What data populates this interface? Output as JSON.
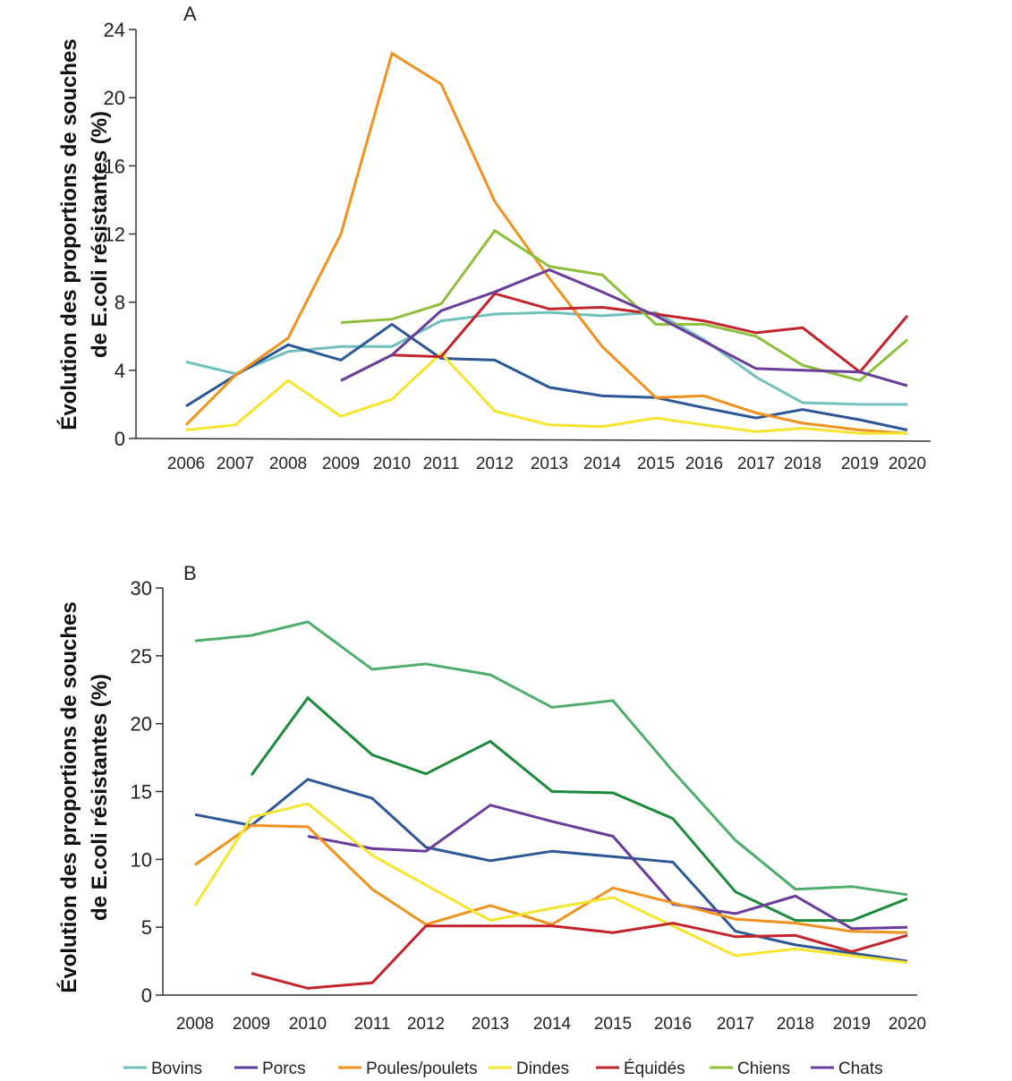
{
  "chart_data": [
    {
      "type": "line",
      "panel_label": "A",
      "title": "",
      "ylabel": [
        "Évolution des proportions de souches",
        "de E.coli résistantes (%)"
      ],
      "xlabel": "",
      "ylim": [
        0,
        24
      ],
      "yticks": [
        "0",
        "4",
        "8",
        "12",
        "16",
        "20",
        "24"
      ],
      "ytick_values": [
        0,
        4,
        8,
        12,
        16,
        20,
        24
      ],
      "x": [
        "2006",
        "2007",
        "2008",
        "2009",
        "2010",
        "2011",
        "2012",
        "2013",
        "2014",
        "2015",
        "2016",
        "2017",
        "2018",
        "2019",
        "2020"
      ],
      "grid": false,
      "series": [
        {
          "name": "Bovins",
          "color": "#70c0bd",
          "values": [
            4.5,
            3.8,
            5.1,
            5.4,
            5.4,
            6.9,
            7.3,
            7.4,
            7.2,
            7.4,
            5.8,
            3.6,
            2.1,
            2.0,
            2.0
          ]
        },
        {
          "name": "Porcs",
          "color": "#2e5796",
          "values": [
            1.9,
            3.7,
            5.5,
            4.6,
            6.7,
            4.7,
            4.6,
            3.0,
            2.5,
            2.4,
            1.8,
            1.2,
            1.7,
            1.1,
            0.5
          ]
        },
        {
          "name": "Poules/poulets",
          "color": "#ef921e",
          "values": [
            0.8,
            3.7,
            5.9,
            12.0,
            22.6,
            20.8,
            13.9,
            9.4,
            5.4,
            2.4,
            2.5,
            1.5,
            0.9,
            0.5,
            0.3
          ]
        },
        {
          "name": "Dindes",
          "color": "#f5e52e",
          "values": [
            0.5,
            0.8,
            3.4,
            1.3,
            2.3,
            5.0,
            1.6,
            0.8,
            0.7,
            1.2,
            0.8,
            0.4,
            0.6,
            0.3,
            0.3
          ]
        },
        {
          "name": "Équidés",
          "color": "#c3232a",
          "values": [
            null,
            null,
            null,
            3.4,
            4.9,
            4.8,
            8.5,
            7.6,
            7.7,
            7.3,
            6.9,
            6.2,
            6.5,
            3.9,
            7.2
          ]
        },
        {
          "name": "Chiens",
          "color": "#8dbf3a",
          "values": [
            null,
            null,
            null,
            6.8,
            7.0,
            7.9,
            12.2,
            10.1,
            9.6,
            6.7,
            6.7,
            6.0,
            4.3,
            3.4,
            5.8
          ]
        },
        {
          "name": "Chats",
          "color": "#6a3d9a",
          "values": [
            null,
            null,
            null,
            3.4,
            4.9,
            7.5,
            8.6,
            9.9,
            8.6,
            7.2,
            5.7,
            4.1,
            4.0,
            3.9,
            3.1
          ]
        }
      ]
    },
    {
      "type": "line",
      "panel_label": "B",
      "title": "",
      "ylabel": [
        "Évolution des proportions de souches",
        "de E.coli résistantes (%)"
      ],
      "xlabel": "",
      "ylim": [
        0,
        30
      ],
      "yticks": [
        "0",
        "5",
        "10",
        "15",
        "20",
        "25",
        "30"
      ],
      "ytick_values": [
        0,
        5,
        10,
        15,
        20,
        25,
        30
      ],
      "x": [
        "2008",
        "2009",
        "2010",
        "2011",
        "2012",
        "2013",
        "2014",
        "2015",
        "2016",
        "2017",
        "2018",
        "2019",
        "2020"
      ],
      "grid": false,
      "series": [
        {
          "name": "Bovins",
          "color": "#4fae6e",
          "values": [
            26.1,
            26.5,
            27.5,
            24.0,
            24.4,
            23.6,
            21.2,
            21.7,
            16.5,
            11.4,
            7.8,
            8.0,
            7.4
          ]
        },
        {
          "name": "Chiens",
          "color": "#1c8a3c",
          "values": [
            null,
            16.2,
            21.9,
            17.7,
            16.3,
            18.7,
            15.0,
            14.9,
            13.0,
            7.6,
            5.5,
            5.5,
            7.1
          ]
        },
        {
          "name": "Porcs",
          "color": "#2e5796",
          "values": [
            13.3,
            12.5,
            15.9,
            14.5,
            10.9,
            9.9,
            10.6,
            10.2,
            9.8,
            4.7,
            3.7,
            3.1,
            2.5
          ]
        },
        {
          "name": "Chats",
          "color": "#6a3d9a",
          "values": [
            null,
            null,
            11.7,
            10.8,
            10.6,
            14.0,
            12.8,
            11.7,
            6.7,
            6.0,
            7.3,
            4.9,
            5.0
          ]
        },
        {
          "name": "Poules/poulets",
          "color": "#ef921e",
          "values": [
            9.6,
            12.5,
            12.4,
            7.8,
            5.2,
            6.6,
            5.2,
            7.9,
            6.8,
            5.6,
            5.3,
            4.7,
            4.6
          ]
        },
        {
          "name": "Dindes",
          "color": "#f5e52e",
          "values": [
            6.6,
            13.1,
            14.1,
            10.3,
            8.1,
            5.5,
            6.4,
            7.2,
            5.1,
            2.9,
            3.4,
            2.9,
            2.4
          ]
        },
        {
          "name": "Équidés",
          "color": "#c3232a",
          "values": [
            null,
            1.6,
            0.5,
            0.9,
            5.1,
            5.1,
            5.1,
            4.6,
            5.3,
            4.3,
            4.4,
            3.2,
            4.4
          ]
        }
      ]
    }
  ],
  "legend": {
    "placement": "bottom",
    "items": [
      {
        "label": "Bovins",
        "color": "#70c0bd"
      },
      {
        "label": "Porcs",
        "color": "#5b3b9a"
      },
      {
        "label": "Poules/poulets",
        "color": "#ef921e"
      },
      {
        "label": "Dindes",
        "color": "#f5e52e"
      },
      {
        "label": "Équidés",
        "color": "#c3232a"
      },
      {
        "label": "Chiens",
        "color": "#8dbf3a"
      },
      {
        "label": "Chats",
        "color": "#6a3d9a"
      }
    ]
  }
}
